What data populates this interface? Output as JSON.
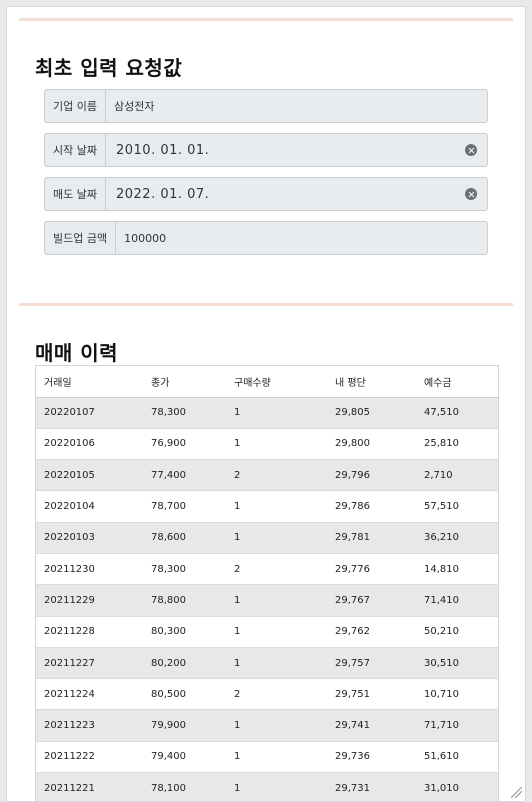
{
  "initial_request": {
    "title": "최초 입력 요청값",
    "fields": [
      {
        "label": "기업 이름",
        "value": "삼성전자"
      },
      {
        "label": "시작 날짜",
        "value": "2010. 01. 01."
      },
      {
        "label": "매도 날짜",
        "value": "2022. 01. 07."
      },
      {
        "label": "빌드업 금액",
        "value": "100000"
      }
    ]
  },
  "trade_history": {
    "title": "매매 이력",
    "columns": [
      "거래일",
      "종가",
      "구매수량",
      "내 평단",
      "예수금"
    ],
    "rows": [
      [
        "20220107",
        "78,300",
        "1",
        "29,805",
        "47,510"
      ],
      [
        "20220106",
        "76,900",
        "1",
        "29,800",
        "25,810"
      ],
      [
        "20220105",
        "77,400",
        "2",
        "29,796",
        "2,710"
      ],
      [
        "20220104",
        "78,700",
        "1",
        "29,786",
        "57,510"
      ],
      [
        "20220103",
        "78,600",
        "1",
        "29,781",
        "36,210"
      ],
      [
        "20211230",
        "78,300",
        "2",
        "29,776",
        "14,810"
      ],
      [
        "20211229",
        "78,800",
        "1",
        "29,767",
        "71,410"
      ],
      [
        "20211228",
        "80,300",
        "1",
        "29,762",
        "50,210"
      ],
      [
        "20211227",
        "80,200",
        "1",
        "29,757",
        "30,510"
      ],
      [
        "20211224",
        "80,500",
        "2",
        "29,751",
        "10,710"
      ],
      [
        "20211223",
        "79,900",
        "1",
        "29,741",
        "71,710"
      ],
      [
        "20211222",
        "79,400",
        "1",
        "29,736",
        "51,610"
      ],
      [
        "20211221",
        "78,100",
        "1",
        "29,731",
        "31,010"
      ]
    ]
  }
}
